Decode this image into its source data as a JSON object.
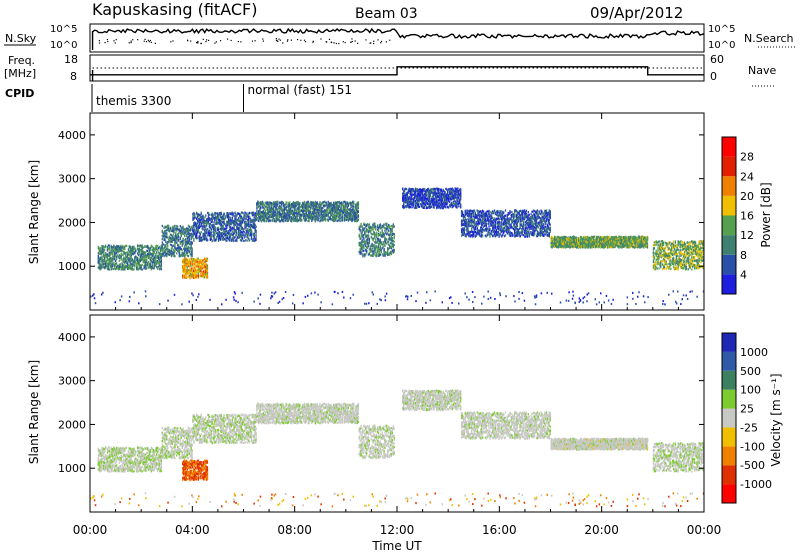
{
  "header": {
    "title": "Kapuskasing (fitACF)",
    "beam": "Beam 03",
    "date": "09/Apr/2012"
  },
  "labels": {
    "nsky": "N.Sky",
    "nsearch": "N.Search",
    "freq": "Freq.",
    "mhz": "[MHz]",
    "nave": "Nave",
    "cpid": "CPID",
    "nsky_top": "10^5",
    "nsky_bottom": "10^0",
    "freq_top": "18",
    "freq_bottom": "8",
    "nave_top": "60",
    "nave_bottom": "0"
  },
  "cpid_segments": [
    {
      "name": "themis 3300"
    },
    {
      "name": "normal (fast) 151"
    }
  ],
  "x_axis": {
    "title": "Time UT",
    "ticks": [
      "00:00",
      "04:00",
      "08:00",
      "12:00",
      "16:00",
      "20:00",
      "00:00"
    ],
    "range_hours": [
      0,
      24
    ]
  },
  "y_axis": {
    "title": "Slant Range [km]",
    "ticks": [
      "1000",
      "2000",
      "3000",
      "4000"
    ],
    "tick_values": [
      1000,
      2000,
      3000,
      4000
    ],
    "range_km": [
      0,
      4500
    ]
  },
  "power_scale": {
    "title": "Power [dB]",
    "ticks": [
      "4",
      "8",
      "12",
      "16",
      "20",
      "24",
      "28"
    ],
    "colors": [
      "#1e1ee0",
      "#2a4fa8",
      "#3f8070",
      "#56a050",
      "#f0c000",
      "#f08000",
      "#e02000",
      "#ff0000"
    ]
  },
  "velocity_scale": {
    "title": "Velocity [m s⁻¹]",
    "ticks": [
      "1000",
      "500",
      "100",
      "25",
      "-25",
      "-100",
      "-500",
      "-1000"
    ],
    "colors": [
      "#1e28b4",
      "#2e5aa8",
      "#3c8060",
      "#7ccc30",
      "#c8c8c4",
      "#f0c000",
      "#f08000",
      "#e03000",
      "#ff0000"
    ]
  },
  "chart_data": {
    "type": "heatmap",
    "title": "Kapuskasing (fitACF)",
    "xlabel": "Time UT",
    "ylabel": "Slant Range [km]",
    "xlim_hours": [
      0,
      24
    ],
    "ylim_km": [
      0,
      4500
    ],
    "echo_bands": [
      {
        "t0": 0.3,
        "t1": 2.8,
        "r0": 950,
        "r1": 1500,
        "power": 11,
        "velocity": 15
      },
      {
        "t0": 2.8,
        "t1": 4.0,
        "r0": 1250,
        "r1": 1950,
        "power": 9,
        "velocity": 10
      },
      {
        "t0": 3.6,
        "t1": 4.6,
        "r0": 750,
        "r1": 1200,
        "power": 20,
        "velocity": -300
      },
      {
        "t0": 4.0,
        "t1": 6.5,
        "r0": 1600,
        "r1": 2250,
        "power": 7,
        "velocity": 12
      },
      {
        "t0": 6.5,
        "t1": 10.5,
        "r0": 2050,
        "r1": 2500,
        "power": 9,
        "velocity": 5
      },
      {
        "t0": 10.5,
        "t1": 11.9,
        "r0": 1250,
        "r1": 2000,
        "power": 10,
        "velocity": 8
      },
      {
        "t0": 12.2,
        "t1": 14.5,
        "r0": 2350,
        "r1": 2800,
        "power": 5,
        "velocity": 5
      },
      {
        "t0": 14.5,
        "t1": 18.0,
        "r0": 1700,
        "r1": 2300,
        "power": 6,
        "velocity": 5
      },
      {
        "t0": 18.0,
        "t1": 21.8,
        "r0": 1450,
        "r1": 1700,
        "power": 13,
        "velocity": 2
      },
      {
        "t0": 22.0,
        "t1": 24.0,
        "r0": 950,
        "r1": 1600,
        "power": 14,
        "velocity": 10
      }
    ],
    "nave": [
      {
        "t0": 0,
        "t1": 12.0,
        "value": 13
      },
      {
        "t0": 12.0,
        "t1": 21.8,
        "value": 33
      },
      {
        "t0": 21.8,
        "t1": 24.0,
        "value": 13
      }
    ],
    "cpid": [
      {
        "t0": 0,
        "t1": 6.0,
        "id": 3300,
        "name": "themis"
      },
      {
        "t0": 6.0,
        "t1": 24.0,
        "id": 151,
        "name": "normal (fast)"
      }
    ]
  }
}
